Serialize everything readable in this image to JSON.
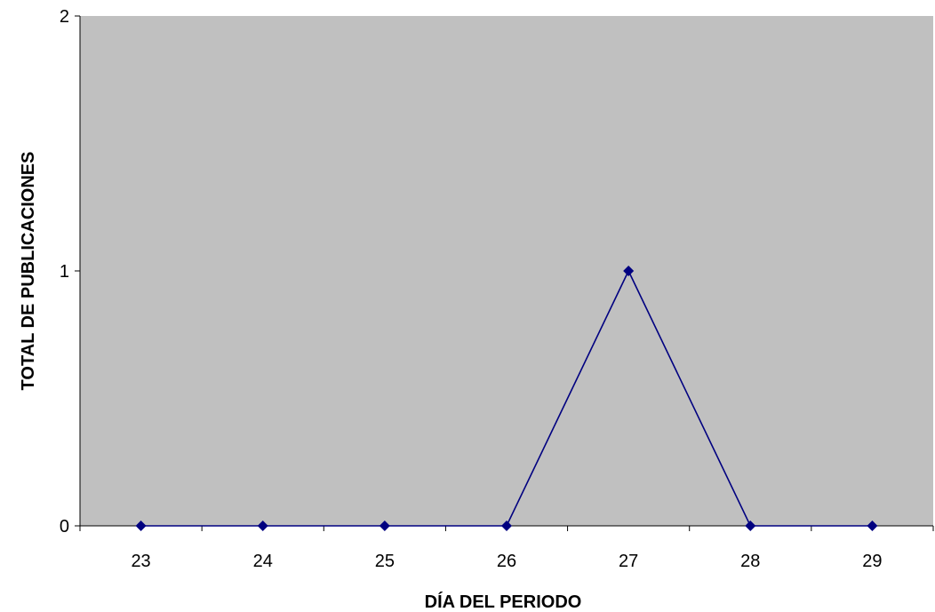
{
  "chart_data": {
    "type": "line",
    "title": "",
    "xlabel": "DÍA DEL PERIODO",
    "ylabel": "TOTAL DE PUBLICACIONES",
    "categories": [
      "23",
      "24",
      "25",
      "26",
      "27",
      "28",
      "29"
    ],
    "series": [
      {
        "values": [
          0,
          0,
          0,
          0,
          1,
          0,
          0
        ]
      }
    ],
    "ylim": [
      0,
      2
    ],
    "yticks": [
      0,
      1,
      2
    ],
    "grid": false,
    "legend": "none",
    "plot_background": "#c0c0c0",
    "line_color": "#000080",
    "marker": "diamond"
  }
}
